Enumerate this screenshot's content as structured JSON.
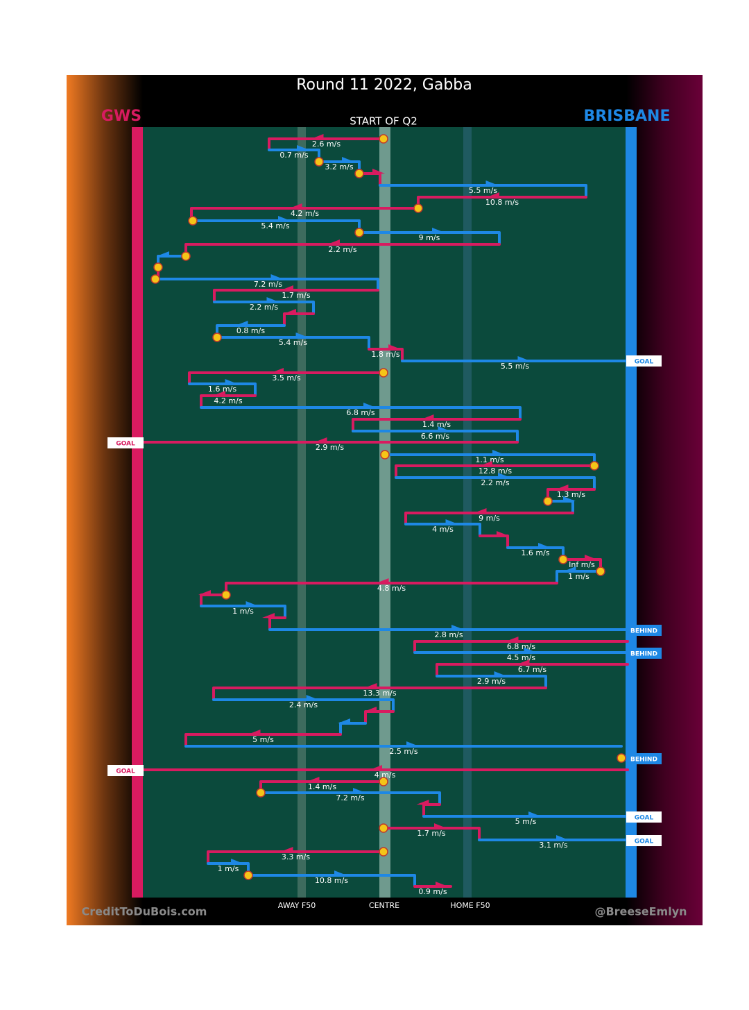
{
  "header": {
    "title": "Round 11 2022, Gabba",
    "home_team": "GWS",
    "away_team": "BRISBANE",
    "period": "START OF Q2"
  },
  "field_labels": [
    "AWAY F50",
    "CENTRE",
    "HOME F50"
  ],
  "credits": {
    "left": "CreditToDuBois.com",
    "right": "@BreeseEmlyn"
  },
  "speeds": [
    "2.6 m/s",
    "0.7 m/s",
    "3.2 m/s",
    "5.5 m/s",
    "10.8 m/s",
    "4.2 m/s",
    "5.4 m/s",
    "9 m/s",
    "2.2 m/s",
    "7.2 m/s",
    "1.7 m/s",
    "2.2 m/s",
    "0.8 m/s",
    "5.4 m/s",
    "1.8 m/s",
    "5.5 m/s",
    "3.5 m/s",
    "1.6 m/s",
    "4.2 m/s",
    "6.8 m/s",
    "1.4 m/s",
    "6.6 m/s",
    "2.9 m/s",
    "1.1 m/s",
    "12.8 m/s",
    "2.2 m/s",
    "1.3 m/s",
    "9 m/s",
    "4 m/s",
    "1.6 m/s",
    "Inf m/s",
    "1 m/s",
    "4.8 m/s",
    "1 m/s",
    "2.8 m/s",
    "6.8 m/s",
    "4.5 m/s",
    "6.7 m/s",
    "2.9 m/s",
    "13.3 m/s",
    "2.4 m/s",
    "5 m/s",
    "2.5 m/s",
    "4 m/s",
    "1.4 m/s",
    "7.2 m/s",
    "5 m/s",
    "1.7 m/s",
    "3.1 m/s",
    "3.3 m/s",
    "1 m/s",
    "10.8 m/s",
    "0.9 m/s"
  ],
  "outcomes": [
    "GOAL",
    "GOAL",
    "BEHIND",
    "BEHIND",
    "BEHIND",
    "GOAL",
    "GOAL",
    "GOAL"
  ]
}
